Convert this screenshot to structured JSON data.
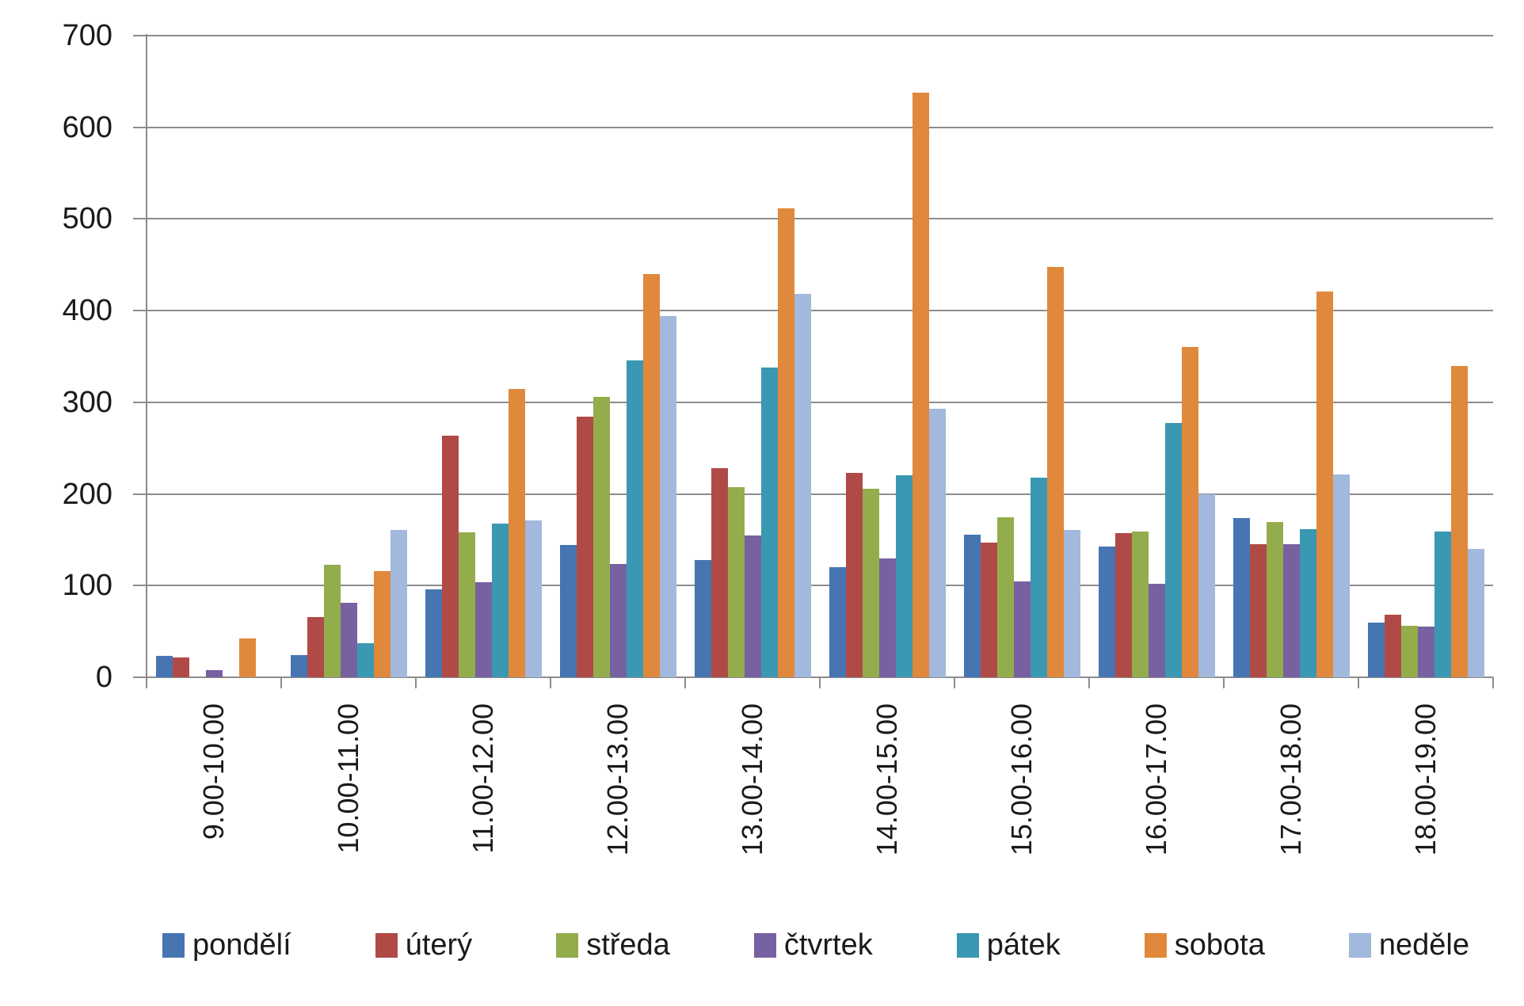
{
  "y_axis": {
    "tick_labels": [
      "0",
      "100",
      "200",
      "300",
      "400",
      "500",
      "600",
      "700"
    ]
  },
  "chart_data": {
    "type": "bar",
    "title": "",
    "xlabel": "",
    "ylabel": "",
    "ylim": [
      0,
      700
    ],
    "ytick_step": 100,
    "grid": true,
    "legend_position": "bottom",
    "categories": [
      "9.00-10.00",
      "10.00-11.00",
      "11.00-12.00",
      "12.00-13.00",
      "13.00-14.00",
      "14.00-15.00",
      "15.00-16.00",
      "16.00-17.00",
      "17.00-18.00",
      "18.00-19.00"
    ],
    "series": [
      {
        "name": "pondělí",
        "color": "#4675b2",
        "values": [
          23,
          24,
          96,
          144,
          128,
          120,
          156,
          143,
          174,
          60
        ]
      },
      {
        "name": "úterý",
        "color": "#b04a47",
        "values": [
          22,
          66,
          264,
          284,
          228,
          223,
          147,
          157,
          145,
          68
        ]
      },
      {
        "name": "středa",
        "color": "#93ad4c",
        "values": [
          0,
          123,
          158,
          306,
          207,
          206,
          175,
          159,
          169,
          56
        ]
      },
      {
        "name": "čtvrtek",
        "color": "#7761a1",
        "values": [
          8,
          81,
          104,
          124,
          155,
          130,
          105,
          102,
          145,
          55
        ]
      },
      {
        "name": "pátek",
        "color": "#3b98b2",
        "values": [
          0,
          37,
          168,
          346,
          338,
          220,
          218,
          277,
          162,
          159
        ]
      },
      {
        "name": "sobota",
        "color": "#e0883c",
        "values": [
          42,
          116,
          315,
          440,
          512,
          638,
          448,
          360,
          421,
          340
        ]
      },
      {
        "name": "neděle",
        "color": "#a2b8dc",
        "values": [
          0,
          161,
          171,
          394,
          418,
          293,
          161,
          200,
          221,
          140
        ]
      }
    ]
  }
}
